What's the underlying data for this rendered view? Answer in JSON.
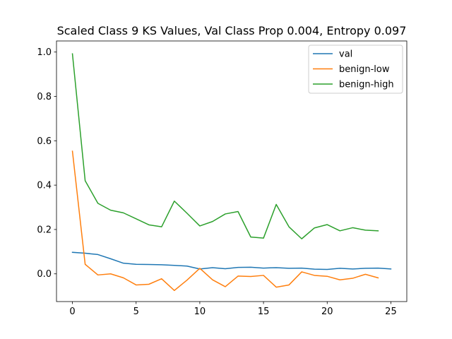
{
  "chart_data": {
    "type": "line",
    "title": "Scaled Class 9 KS Values, Val Class Prop 0.004, Entropy 0.097",
    "xlabel": "",
    "ylabel": "",
    "xlim": [
      -1.25,
      26.25
    ],
    "ylim": [
      -0.125,
      1.05
    ],
    "xticks": [
      0,
      5,
      10,
      15,
      20,
      25
    ],
    "yticks": [
      0.0,
      0.2,
      0.4,
      0.6,
      0.8,
      1.0
    ],
    "ytick_labels": [
      "0.0",
      "0.2",
      "0.4",
      "0.6",
      "0.8",
      "1.0"
    ],
    "grid": false,
    "legend_position": "top-right",
    "series": [
      {
        "name": "val",
        "color": "#1f77b4",
        "x": [
          0,
          1,
          2,
          3,
          4,
          5,
          6,
          7,
          8,
          9,
          10,
          11,
          12,
          13,
          14,
          15,
          16,
          17,
          18,
          19,
          20,
          21,
          22,
          23,
          24,
          25
        ],
        "values": [
          0.097,
          0.093,
          0.087,
          0.068,
          0.048,
          0.043,
          0.042,
          0.041,
          0.038,
          0.035,
          0.022,
          0.028,
          0.023,
          0.029,
          0.03,
          0.026,
          0.028,
          0.025,
          0.026,
          0.021,
          0.02,
          0.025,
          0.022,
          0.025,
          0.026,
          0.022
        ]
      },
      {
        "name": "benign-low",
        "color": "#ff7f0e",
        "x": [
          0,
          1,
          2,
          3,
          4,
          5,
          6,
          7,
          8,
          9,
          10,
          11,
          12,
          13,
          14,
          15,
          16,
          17,
          18,
          19,
          20,
          21,
          22,
          23,
          24
        ],
        "values": [
          0.553,
          0.043,
          -0.005,
          0.0,
          -0.018,
          -0.05,
          -0.047,
          -0.022,
          -0.075,
          -0.028,
          0.025,
          -0.027,
          -0.058,
          -0.01,
          -0.012,
          -0.007,
          -0.06,
          -0.05,
          0.009,
          -0.007,
          -0.011,
          -0.027,
          -0.02,
          -0.002,
          -0.018
        ]
      },
      {
        "name": "benign-high",
        "color": "#2ca02c",
        "x": [
          0,
          1,
          2,
          3,
          4,
          5,
          6,
          7,
          8,
          9,
          10,
          11,
          12,
          13,
          14,
          15,
          16,
          17,
          18,
          19,
          20,
          21,
          22,
          23,
          24
        ],
        "values": [
          0.992,
          0.42,
          0.318,
          0.287,
          0.275,
          0.248,
          0.221,
          0.212,
          0.328,
          0.273,
          0.216,
          0.236,
          0.27,
          0.281,
          0.166,
          0.161,
          0.313,
          0.212,
          0.158,
          0.207,
          0.222,
          0.194,
          0.208,
          0.197,
          0.194
        ]
      }
    ]
  }
}
